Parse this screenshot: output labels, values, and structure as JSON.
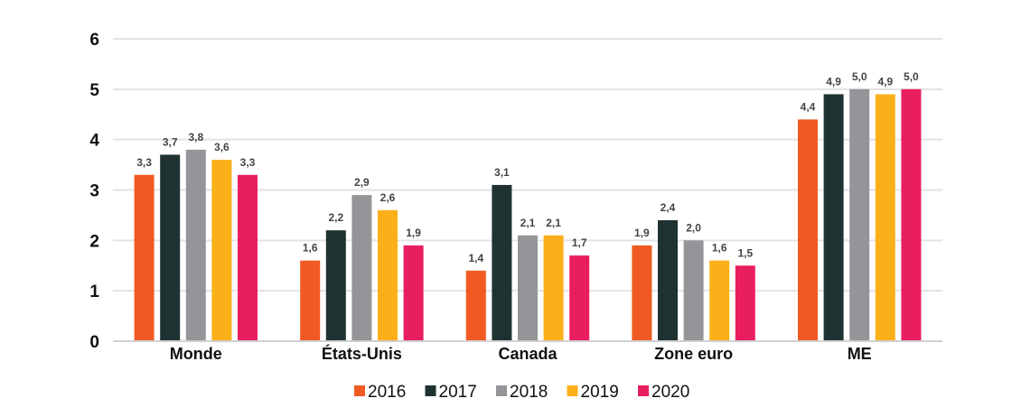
{
  "chart_data": {
    "type": "bar",
    "title": "",
    "xlabel": "",
    "ylabel": "",
    "ylim": [
      0,
      6
    ],
    "yticks": [
      "0",
      "1",
      "2",
      "3",
      "4",
      "5",
      "6"
    ],
    "grid": true,
    "legend_position": "bottom-center",
    "categories": [
      "Monde",
      "États-Unis",
      "Canada",
      "Zone euro",
      "ME"
    ],
    "series": [
      {
        "name": "2016",
        "color": "#f05a22",
        "values": [
          3.3,
          1.6,
          1.4,
          1.9,
          4.4
        ],
        "labels": [
          "3,3",
          "1,6",
          "1,4",
          "1,9",
          "4,4"
        ]
      },
      {
        "name": "2017",
        "color": "#1f3231",
        "values": [
          3.7,
          2.2,
          3.1,
          2.4,
          4.9
        ],
        "labels": [
          "3,7",
          "2,2",
          "3,1",
          "2,4",
          "4,9"
        ]
      },
      {
        "name": "2018",
        "color": "#939598",
        "values": [
          3.8,
          2.9,
          2.1,
          2.0,
          5.0
        ],
        "labels": [
          "3,8",
          "2,9",
          "2,1",
          "2,0",
          "5,0"
        ]
      },
      {
        "name": "2019",
        "color": "#fbb01a",
        "values": [
          3.6,
          2.6,
          2.1,
          1.6,
          4.9
        ],
        "labels": [
          "3,6",
          "2,6",
          "2,1",
          "1,6",
          "4,9"
        ]
      },
      {
        "name": "2020",
        "color": "#e91e5f",
        "values": [
          3.3,
          1.9,
          1.7,
          1.5,
          5.0
        ],
        "labels": [
          "3,3",
          "1,9",
          "1,7",
          "1,5",
          "5,0"
        ]
      }
    ]
  }
}
